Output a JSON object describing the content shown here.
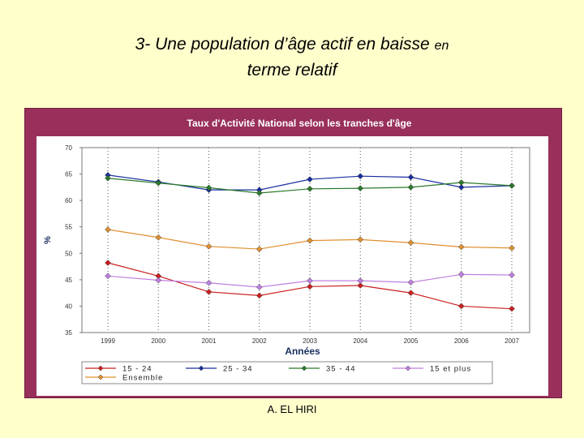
{
  "slide": {
    "title_main": "3- Une population d’âge actif en baisse",
    "title_en": "en",
    "title_line2": "terme relatif",
    "footer": "A. EL HIRI"
  },
  "colors": {
    "background": "#ffffcc",
    "frame": "#99305c",
    "series_15_21": "#cc2020",
    "series_25_34": "#1a2fa0",
    "series_35_44": "#2a7a2a",
    "series_15_plus": "#c080e0",
    "series_ensemble": "#e09030"
  },
  "chart_data": {
    "type": "line",
    "title": "Taux d'Activité National selon les tranches d'âge",
    "xlabel": "Années",
    "ylabel": "%",
    "x": [
      "1999",
      "2000",
      "2001",
      "2002",
      "2003",
      "2004",
      "2005",
      "2006",
      "2007"
    ],
    "ylim": [
      35,
      70
    ],
    "yticks": [
      "70",
      "65",
      "60",
      "55",
      "50",
      "45",
      "40",
      "35"
    ],
    "grid": true,
    "legend_position": "bottom",
    "series": [
      {
        "name": "15 - 24",
        "color": "#cc2020",
        "values": [
          48.2,
          45.7,
          42.7,
          42.0,
          43.7,
          43.9,
          42.5,
          40.0,
          39.5
        ]
      },
      {
        "name": "25 - 34",
        "color": "#1a2fa0",
        "values": [
          64.8,
          63.5,
          62.0,
          62.0,
          64.0,
          64.6,
          64.4,
          62.5,
          62.8
        ]
      },
      {
        "name": "35 - 44",
        "color": "#2a7a2a",
        "values": [
          64.2,
          63.3,
          62.4,
          61.4,
          62.2,
          62.3,
          62.5,
          63.4,
          62.8
        ]
      },
      {
        "name": "15 et plus",
        "color": "#c080e0",
        "values": [
          45.7,
          44.9,
          44.4,
          43.6,
          44.8,
          44.8,
          44.5,
          46.0,
          45.9
        ]
      },
      {
        "name": "Ensemble",
        "color": "#e09030",
        "values": [
          54.5,
          53.0,
          51.3,
          50.8,
          52.4,
          52.6,
          52.0,
          51.2,
          51.0
        ]
      }
    ]
  }
}
